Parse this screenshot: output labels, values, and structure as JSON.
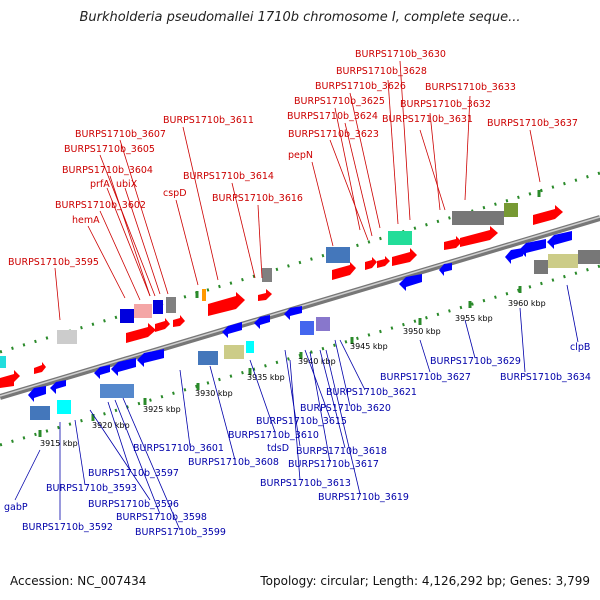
{
  "title": "Burkholderia pseudomallei 1710b chromosome I, complete seque...",
  "footer": {
    "accession": "Accession: NC_007434",
    "topology": "Topology: circular; Length: 4,126,292 bp; Genes: 3,799"
  },
  "ticks": [
    "3915 kbp",
    "3920 kbp",
    "3925 kbp",
    "3930 kbp",
    "3935 kbp",
    "3940 kbp",
    "3945 kbp",
    "3950 kbp",
    "3955 kbp",
    "3960 kbp"
  ],
  "top_labels": [
    "BURPS1710b_3595",
    "hemA",
    "BURPS1710b_3602",
    "prfA",
    "ubiX",
    "BURPS1710b_3604",
    "BURPS1710b_3605",
    "BURPS1710b_3607",
    "cspD",
    "BURPS1710b_3611",
    "BURPS1710b_3614",
    "BURPS1710b_3616",
    "pepN",
    "BURPS1710b_3623",
    "BURPS1710b_3624",
    "BURPS1710b_3625",
    "BURPS1710b_3626",
    "BURPS1710b_3628",
    "BURPS1710b_3630",
    "BURPS1710b_3631",
    "BURPS1710b_3632",
    "BURPS1710b_3633",
    "BURPS1710b_3637"
  ],
  "bottom_labels": [
    "gabP",
    "BURPS1710b_3592",
    "BURPS1710b_3593",
    "BURPS1710b_3596",
    "BURPS1710b_3597",
    "BURPS1710b_3598",
    "BURPS1710b_3599",
    "BURPS1710b_3601",
    "BURPS1710b_3608",
    "BURPS1710b_3610",
    "tdsD",
    "BURPS1710b_3613",
    "BURPS1710b_3615",
    "BURPS1710b_3617",
    "BURPS1710b_3618",
    "BURPS1710b_3619",
    "BURPS1710b_3620",
    "BURPS1710b_3621",
    "BURPS1710b_3627",
    "BURPS1710b_3629",
    "BURPS1710b_3634",
    "clpB"
  ],
  "colors": {
    "forward": "#ff0000",
    "reverse": "#0000ff",
    "label_top": "#cc0000",
    "label_bottom": "#0000aa",
    "backbone": "#888888",
    "dots": "#2a8a2a"
  }
}
